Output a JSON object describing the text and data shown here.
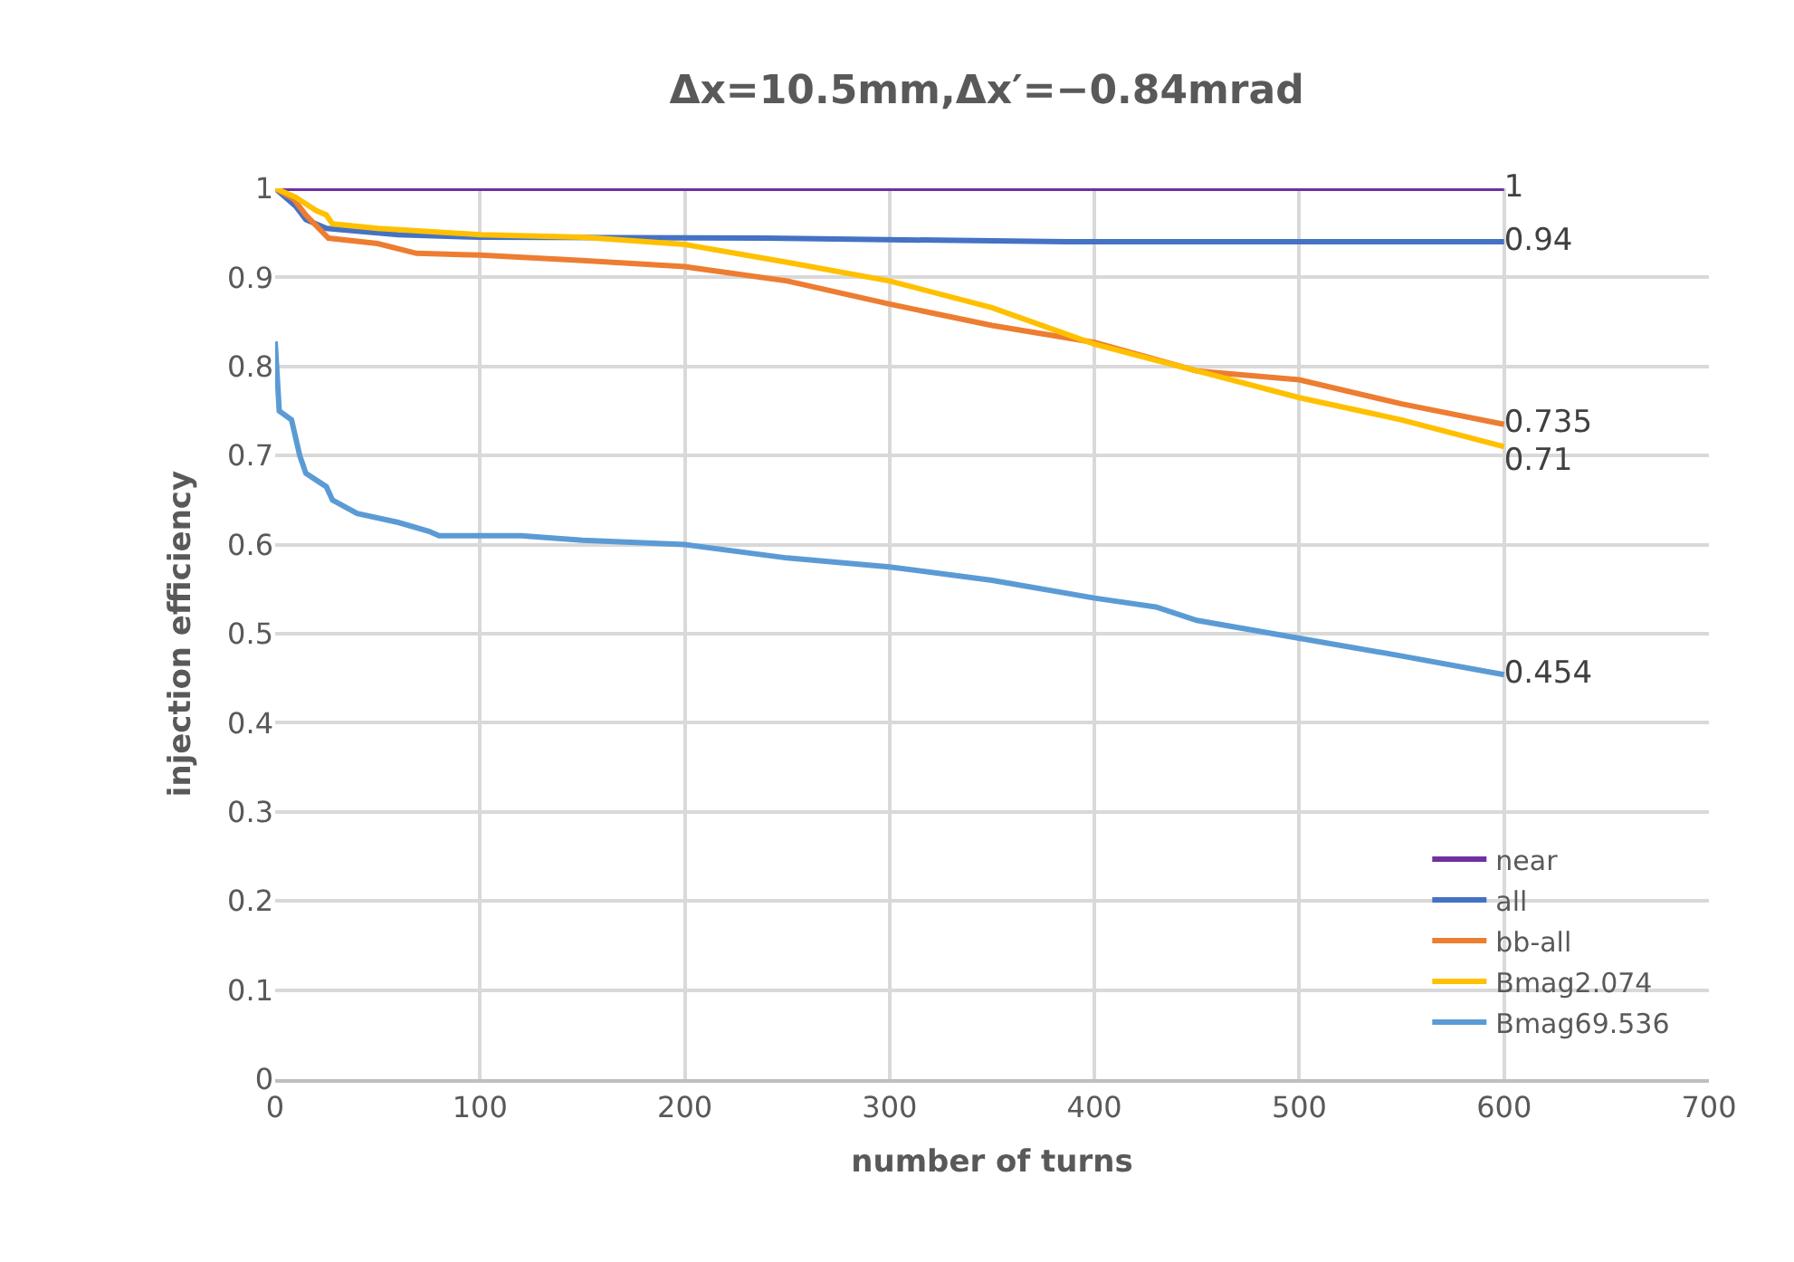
{
  "chart_data": {
    "type": "line",
    "title": "Δx=10.5mm,Δx′=−0.84mrad",
    "xlabel": "number of turns",
    "ylabel": "injection efficiency",
    "xlim": [
      0,
      700
    ],
    "xticks": [
      0,
      100,
      200,
      300,
      400,
      500,
      600,
      700
    ],
    "ylim": [
      0,
      1
    ],
    "yticks": [
      0,
      0.1,
      0.2,
      0.3,
      0.4,
      0.5,
      0.6,
      0.7,
      0.8,
      0.9,
      1
    ],
    "grid": true,
    "legend": "bottom right",
    "marker": "none",
    "line_style": "solid",
    "series": [
      {
        "name": "near",
        "color": "#7030a0",
        "x": [
          0,
          600
        ],
        "values": [
          1,
          1
        ],
        "value_labels": [
          null,
          "1"
        ]
      },
      {
        "name": "all",
        "color": "#4472c4",
        "x": [
          0,
          10,
          15,
          25,
          60,
          100,
          240,
          386,
          600
        ],
        "values": [
          1,
          0.98,
          0.965,
          0.955,
          0.948,
          0.945,
          0.944,
          0.94,
          0.94
        ],
        "value_labels": [
          null,
          null,
          null,
          null,
          null,
          null,
          null,
          null,
          "0.94"
        ]
      },
      {
        "name": "bb-all",
        "color": "#ed7d31",
        "x": [
          0,
          9,
          15,
          26,
          50,
          69,
          100,
          150,
          200,
          250,
          300,
          350,
          400,
          450,
          500,
          550,
          600
        ],
        "values": [
          1,
          0.988,
          0.97,
          0.944,
          0.938,
          0.927,
          0.925,
          0.919,
          0.912,
          0.896,
          0.87,
          0.846,
          0.827,
          0.795,
          0.785,
          0.758,
          0.735
        ],
        "value_labels": [
          null,
          null,
          null,
          null,
          null,
          null,
          null,
          null,
          null,
          null,
          null,
          null,
          null,
          null,
          null,
          null,
          "0.735"
        ]
      },
      {
        "name": "Bmag2.074",
        "color": "#ffc000",
        "x": [
          0,
          10,
          20,
          25,
          28,
          50,
          100,
          150,
          200,
          250,
          300,
          350,
          400,
          450,
          500,
          550,
          600
        ],
        "values": [
          1,
          0.99,
          0.975,
          0.97,
          0.96,
          0.955,
          0.948,
          0.945,
          0.937,
          0.917,
          0.896,
          0.866,
          0.825,
          0.795,
          0.765,
          0.74,
          0.71
        ],
        "value_labels": [
          null,
          null,
          null,
          null,
          null,
          null,
          null,
          null,
          null,
          null,
          null,
          null,
          null,
          null,
          null,
          null,
          "0.71"
        ]
      },
      {
        "name": "Bmag69.536",
        "color": "#5b9bd5",
        "x": [
          0,
          2,
          8,
          12,
          15,
          25,
          28,
          40,
          60,
          75,
          80,
          120,
          150,
          200,
          250,
          300,
          350,
          400,
          430,
          450,
          500,
          550,
          600
        ],
        "values": [
          0.828,
          0.75,
          0.74,
          0.7,
          0.68,
          0.665,
          0.65,
          0.635,
          0.625,
          0.615,
          0.61,
          0.61,
          0.605,
          0.6,
          0.585,
          0.575,
          0.56,
          0.54,
          0.53,
          0.515,
          0.495,
          0.475,
          0.454
        ],
        "value_labels": [
          null,
          null,
          null,
          null,
          null,
          null,
          null,
          null,
          null,
          null,
          null,
          null,
          null,
          null,
          null,
          null,
          null,
          null,
          null,
          null,
          null,
          null,
          "0.454"
        ]
      }
    ]
  }
}
